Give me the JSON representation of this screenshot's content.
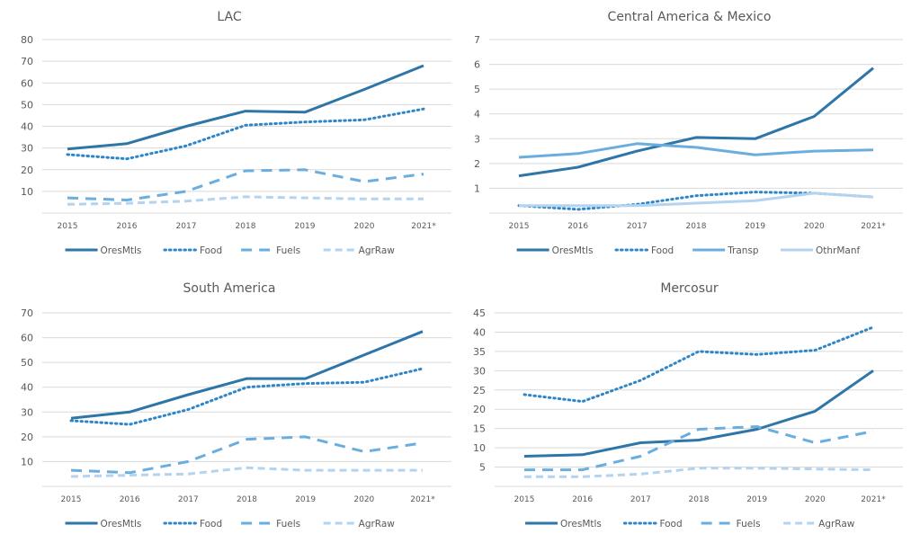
{
  "chart_data": [
    {
      "type": "line",
      "title": "LAC",
      "xlabel": "",
      "ylabel": "",
      "categories": [
        "2015",
        "2016",
        "2017",
        "2018",
        "2019",
        "2020",
        "2021*"
      ],
      "ylim": [
        0,
        80
      ],
      "yticks": [
        10,
        20,
        30,
        40,
        50,
        60,
        70,
        80
      ],
      "grid": true,
      "legend": "bottom",
      "series": [
        {
          "name": "OresMtls",
          "style": "solid",
          "color": "#2e75a8",
          "values": [
            29.5,
            32,
            40,
            47,
            46.5,
            57,
            68
          ]
        },
        {
          "name": "Food",
          "style": "dotted",
          "color": "#2e86c8",
          "values": [
            27,
            25,
            31,
            40.5,
            42,
            43,
            48
          ]
        },
        {
          "name": "Fuels",
          "style": "dashed-long",
          "color": "#6aaee0",
          "values": [
            7,
            6,
            10,
            19.5,
            20,
            14.5,
            18
          ]
        },
        {
          "name": "AgrRaw",
          "style": "dashed",
          "color": "#b4d3ef",
          "values": [
            4,
            4.5,
            5.5,
            7.5,
            7,
            6.5,
            6.5
          ]
        }
      ]
    },
    {
      "type": "line",
      "title": "Central America & Mexico",
      "xlabel": "",
      "ylabel": "",
      "categories": [
        "2015",
        "2016",
        "2017",
        "2018",
        "2019",
        "2020",
        "2021*"
      ],
      "ylim": [
        0,
        7
      ],
      "yticks": [
        1,
        2,
        3,
        4,
        5,
        6,
        7
      ],
      "grid": true,
      "legend": "bottom",
      "series": [
        {
          "name": "OresMtls",
          "style": "solid",
          "color": "#2e75a8",
          "values": [
            1.5,
            1.85,
            2.5,
            3.05,
            3.0,
            3.9,
            5.85
          ]
        },
        {
          "name": "Food",
          "style": "dotted",
          "color": "#2e86c8",
          "values": [
            0.3,
            0.15,
            0.35,
            0.7,
            0.85,
            0.8,
            0.65
          ]
        },
        {
          "name": "Transp",
          "style": "solid",
          "color": "#6aaee0",
          "values": [
            2.25,
            2.4,
            2.8,
            2.65,
            2.35,
            2.5,
            2.55
          ]
        },
        {
          "name": "OthrManf",
          "style": "solid",
          "color": "#b4d3ef",
          "values": [
            0.3,
            0.3,
            0.3,
            0.4,
            0.5,
            0.8,
            0.65
          ]
        }
      ]
    },
    {
      "type": "line",
      "title": "South America",
      "xlabel": "",
      "ylabel": "",
      "categories": [
        "2015",
        "2016",
        "2017",
        "2018",
        "2019",
        "2020",
        "2021*"
      ],
      "ylim": [
        0,
        70
      ],
      "yticks": [
        10,
        20,
        30,
        40,
        50,
        60,
        70
      ],
      "grid": true,
      "legend": "bottom",
      "series": [
        {
          "name": "OresMtls",
          "style": "solid",
          "color": "#2e75a8",
          "values": [
            27.5,
            30,
            37,
            43.5,
            43.5,
            53,
            62.5
          ]
        },
        {
          "name": "Food",
          "style": "dotted",
          "color": "#2e86c8",
          "values": [
            26.5,
            25,
            31,
            40,
            41.5,
            42,
            47.5
          ]
        },
        {
          "name": "Fuels",
          "style": "dashed-long",
          "color": "#6aaee0",
          "values": [
            6.5,
            5.5,
            10,
            19,
            20,
            14,
            17.5
          ]
        },
        {
          "name": "AgrRaw",
          "style": "dashed",
          "color": "#b4d3ef",
          "values": [
            4,
            4.5,
            5,
            7.5,
            6.5,
            6.5,
            6.5
          ]
        }
      ]
    },
    {
      "type": "line",
      "title": "Mercosur",
      "xlabel": "",
      "ylabel": "",
      "categories": [
        "2015",
        "2016",
        "2017",
        "2018",
        "2019",
        "2020",
        "2021*"
      ],
      "ylim": [
        0,
        45
      ],
      "yticks": [
        5,
        10,
        15,
        20,
        25,
        30,
        35,
        40,
        45
      ],
      "grid": true,
      "legend": "bottom",
      "series": [
        {
          "name": "OresMtls",
          "style": "solid",
          "color": "#2e75a8",
          "values": [
            7.8,
            8.2,
            11.3,
            12,
            14.8,
            19.5,
            30
          ]
        },
        {
          "name": "Food",
          "style": "dotted",
          "color": "#2e86c8",
          "values": [
            23.8,
            22,
            27.5,
            35,
            34.2,
            35.3,
            41.3
          ]
        },
        {
          "name": "Fuels",
          "style": "dashed-long",
          "color": "#6aaee0",
          "values": [
            4.3,
            4.3,
            7.8,
            14.8,
            15.5,
            11.3,
            14.3
          ]
        },
        {
          "name": "AgrRaw",
          "style": "dashed",
          "color": "#b4d3ef",
          "values": [
            2.5,
            2.5,
            3.2,
            4.7,
            4.7,
            4.5,
            4.3
          ]
        }
      ]
    }
  ]
}
